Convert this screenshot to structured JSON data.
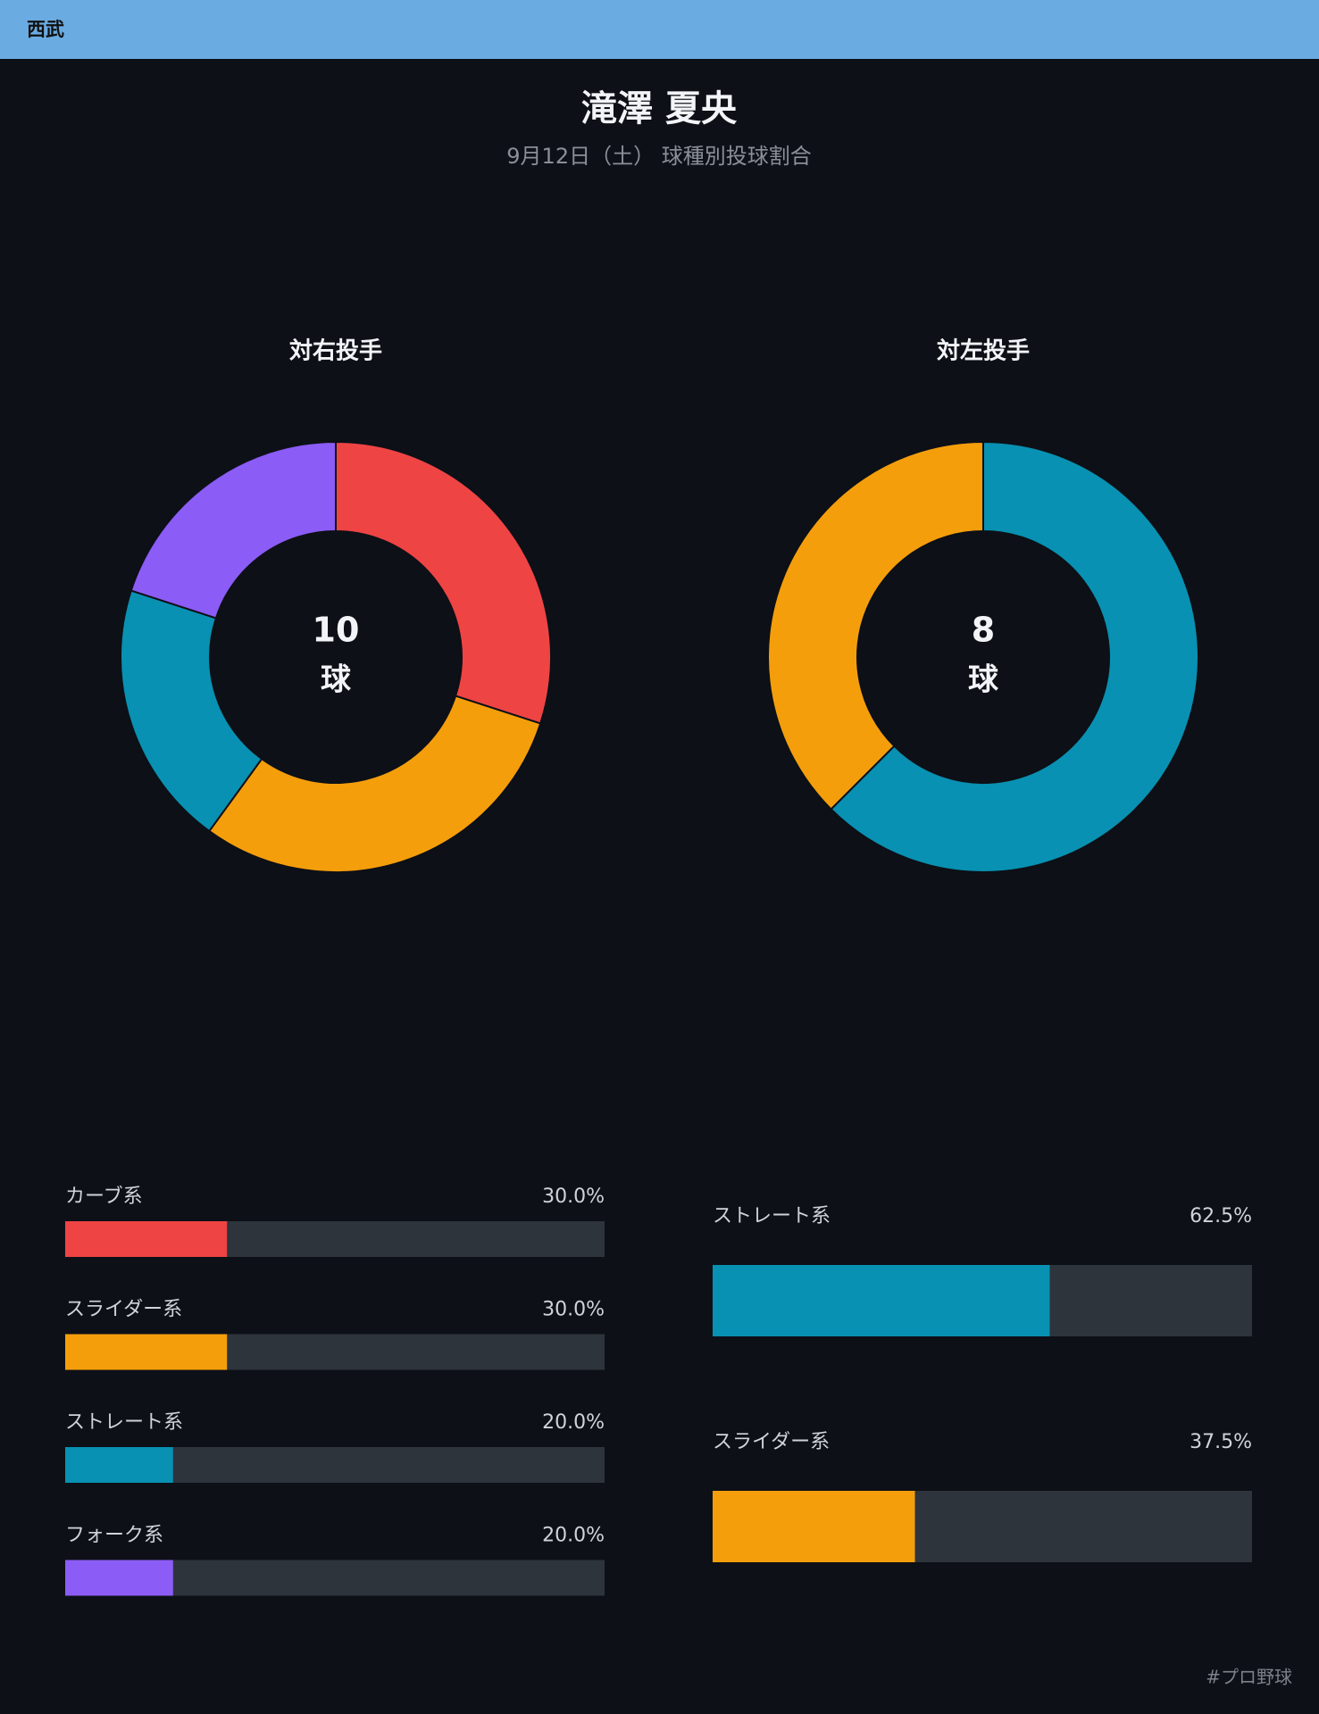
{
  "header": "西武",
  "title": "滝澤 夏央",
  "subtitle": "9月12日（土） 球種別投球割合",
  "footer": "#プロ野球",
  "chart_data": [
    {
      "type": "donut",
      "title": "対右投手",
      "total": 10,
      "total_unit": "球",
      "categories": [
        "カーブ系",
        "スライダー系",
        "ストレート系",
        "フォーク系"
      ],
      "values": [
        30,
        30,
        20,
        20
      ],
      "colors": [
        "#ef4444",
        "#f59e0b",
        "#0891b2",
        "#8b5cf6"
      ]
    },
    {
      "type": "donut",
      "title": "対左投手",
      "total": 8,
      "total_unit": "球",
      "categories": [
        "ストレート系",
        "スライダー系"
      ],
      "values": [
        62.5,
        37.5
      ],
      "colors": [
        "#0891b2",
        "#f59e0b"
      ]
    },
    {
      "type": "bar",
      "orientation": "horizontal",
      "categories": [
        "カーブ系",
        "スライダー系",
        "ストレート系",
        "フォーク系"
      ],
      "values": [
        30,
        30,
        20,
        20
      ],
      "value_labels": [
        "30.0%",
        "30.0%",
        "20.0%",
        "20.0%"
      ],
      "colors": [
        "#ef4444",
        "#f59e0b",
        "#0891b2",
        "#8b5cf6"
      ],
      "xlim": [
        0,
        100
      ]
    },
    {
      "type": "bar",
      "orientation": "horizontal",
      "categories": [
        "ストレート系",
        "スライダー系"
      ],
      "values": [
        62.5,
        37.5
      ],
      "value_labels": [
        "62.5%",
        "37.5%"
      ],
      "colors": [
        "#0891b2",
        "#f59e0b"
      ],
      "xlim": [
        0,
        100
      ]
    }
  ]
}
